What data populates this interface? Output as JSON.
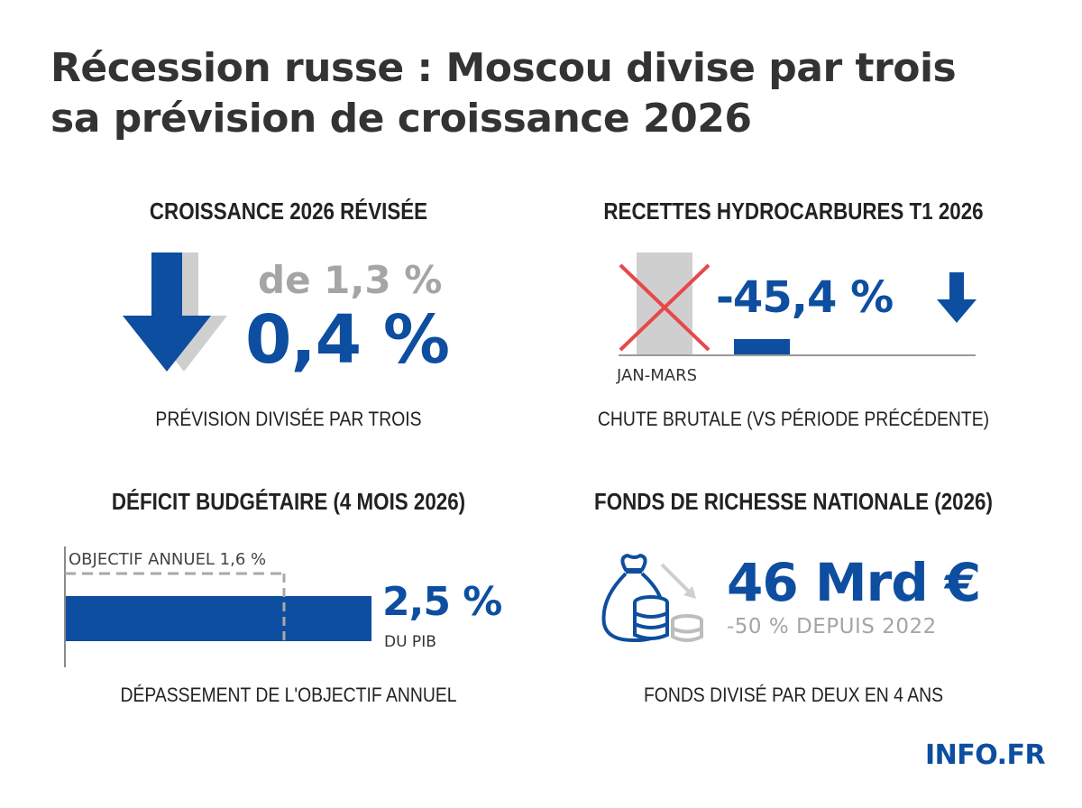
{
  "title": {
    "line1": "Récession russe : Moscou divise par trois",
    "line2": "sa prévision de croissance 2026"
  },
  "panels": {
    "growth": {
      "heading": "CROISSANCE 2026 RÉVISÉE",
      "previous": "de 1,3 %",
      "current": "0,4 %",
      "caption": "PRÉVISION DIVISÉE PAR TROIS",
      "icon": "down-arrow-icon"
    },
    "hydrocarbons": {
      "heading": "RECETTES HYDROCARBURES T1 2026",
      "change": "-45,4 %",
      "period_label": "JAN-MARS",
      "caption": "CHUTE BRUTALE (VS PÉRIODE PRÉCÉDENTE)",
      "icon": "down-arrow-icon"
    },
    "deficit": {
      "heading": "DÉFICIT BUDGÉTAIRE (4 MOIS 2026)",
      "target_label": "OBJECTIF ANNUEL 1,6 %",
      "value": "2,5 %",
      "unit": "DU PIB",
      "caption": "DÉPASSEMENT DE L'OBJECTIF ANNUEL"
    },
    "fund": {
      "heading": "FONDS DE RICHESSE NATIONALE (2026)",
      "value": "46 Mrd €",
      "change": "-50 % DEPUIS 2022",
      "caption": "FONDS DIVISÉ PAR DEUX EN 4 ANS",
      "icon": "money-bag-coins-icon"
    }
  },
  "brand": "INFO.FR",
  "colors": {
    "accent_blue": "#0d4ea0",
    "grey": "#c8c8c8",
    "red_cross": "#e8474c",
    "text": "#2f2f2f"
  }
}
